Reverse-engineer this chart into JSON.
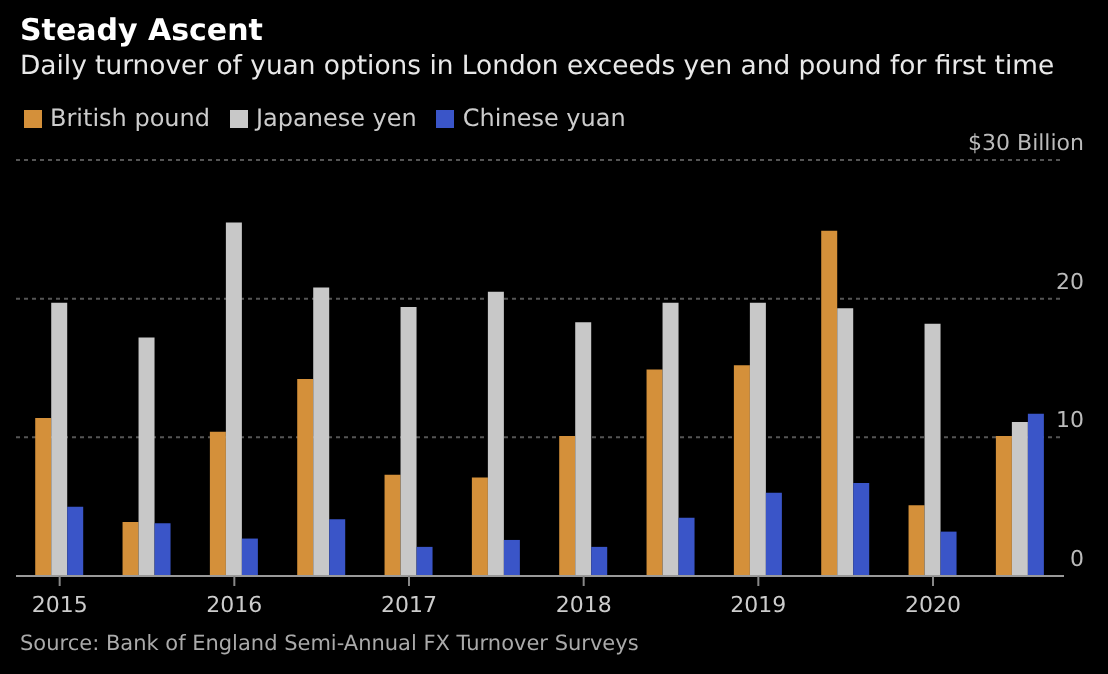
{
  "chart_data": {
    "type": "bar",
    "title": "Steady Ascent",
    "subtitle": "Daily turnover of yuan options in London exceeds yen and pound for first time",
    "categories": [
      "2015",
      null,
      "2016",
      null,
      "2017",
      null,
      "2018",
      null,
      "2019",
      null,
      "2020",
      null
    ],
    "series": [
      {
        "name": "British pound",
        "color": "#d4903a",
        "values": [
          11.4,
          3.9,
          10.4,
          14.2,
          7.3,
          7.1,
          10.1,
          14.9,
          15.2,
          24.9,
          5.1,
          10.1
        ]
      },
      {
        "name": "Japanese yen",
        "color": "#c8c8c8",
        "values": [
          19.7,
          17.2,
          25.5,
          20.8,
          19.4,
          20.5,
          18.3,
          19.7,
          19.7,
          19.3,
          18.2,
          11.1
        ]
      },
      {
        "name": "Chinese yuan",
        "color": "#3a55c8",
        "values": [
          5.0,
          3.8,
          2.7,
          4.1,
          2.1,
          2.6,
          2.1,
          4.2,
          6.0,
          6.7,
          3.2,
          11.7
        ]
      }
    ],
    "ylim": [
      0,
      30
    ],
    "yticks": [
      0,
      10,
      20,
      {
        "value": 30,
        "label": "$30 Billion"
      }
    ],
    "grid": "y",
    "legend": "top left",
    "annotations": [
      "Source: Bank of England Semi-Annual FX Turnover Surveys"
    ]
  }
}
